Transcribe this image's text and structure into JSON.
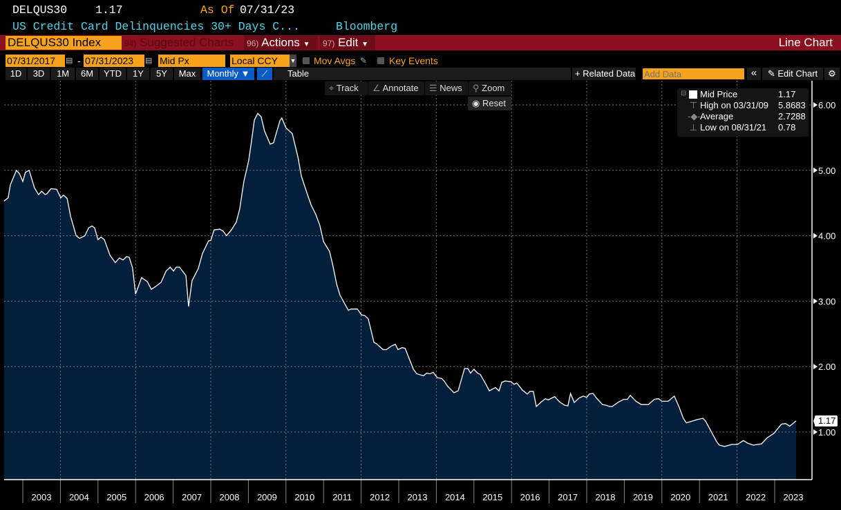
{
  "header": {
    "ticker": "DELQUS30",
    "last": "1.17",
    "as_of_label": "As Of",
    "as_of_date": "07/31/23",
    "description": "US Credit Card Delinquencies 30+ Days C...",
    "source": "Bloomberg"
  },
  "menu": {
    "security": "DELQUS30 Index",
    "suggested_num": "94)",
    "suggested": "Suggested Charts",
    "actions_num": "96)",
    "actions": "Actions",
    "edit_num": "97)",
    "edit": "Edit",
    "chart_type": "Line Chart"
  },
  "controls": {
    "start_date": "07/31/2017",
    "dash": "-",
    "end_date": "07/31/2023",
    "field": "Mid Px",
    "currency": "Local CCY",
    "mov_avgs": "Mov Avgs",
    "key_events": "Key Events"
  },
  "periods": [
    "1D",
    "3D",
    "1M",
    "6M",
    "YTD",
    "1Y",
    "5Y",
    "Max"
  ],
  "frequency": "Monthly ▼",
  "table": "Table",
  "related": "+ Related Data",
  "add_data_placeholder": "Add Data",
  "collapse": "«",
  "edit_chart": "Edit Chart",
  "tools": {
    "track": "Track",
    "annotate": "Annotate",
    "news": "News",
    "zoom": "Zoom",
    "reset": "Reset"
  },
  "legend": {
    "mid_label": "Mid Price",
    "mid_value": "1.17",
    "high_label": "High on 03/31/09",
    "high_value": "5.8683",
    "avg_label": "Average",
    "avg_value": "2.7288",
    "low_label": "Low on 08/31/21",
    "low_value": "0.78"
  },
  "colors": {
    "fill": "#031f3b",
    "line": "#ffffff",
    "accent": "#f7a21b",
    "bar": "#8a0f1f",
    "cyan": "#4fd3ea"
  },
  "chart_data": {
    "type": "area",
    "title": "US Credit Card Delinquencies 30+ Days",
    "xlabel": "",
    "ylabel": "",
    "ylim": [
      0.27,
      6.35
    ],
    "xlim": [
      2002.5,
      2023.6
    ],
    "yticks": [
      "6.00",
      "5.00",
      "4.00",
      "3.00",
      "2.00",
      "1.00"
    ],
    "xticks": [
      "2003",
      "2004",
      "2005",
      "2006",
      "2007",
      "2008",
      "2009",
      "2010",
      "2011",
      "2012",
      "2013",
      "2014",
      "2015",
      "2016",
      "2017",
      "2018",
      "2019",
      "2020",
      "2021",
      "2022",
      "2023"
    ],
    "last_value": "1.17",
    "grid": true,
    "points": [
      [
        2002.5,
        4.53
      ],
      [
        2002.61,
        4.58
      ],
      [
        2002.67,
        4.78
      ],
      [
        2002.83,
        5.0
      ],
      [
        2002.91,
        4.95
      ],
      [
        2003.0,
        4.83
      ],
      [
        2003.07,
        4.97
      ],
      [
        2003.17,
        5.0
      ],
      [
        2003.31,
        4.73
      ],
      [
        2003.42,
        4.63
      ],
      [
        2003.5,
        4.68
      ],
      [
        2003.59,
        4.63
      ],
      [
        2003.64,
        4.64
      ],
      [
        2003.75,
        4.72
      ],
      [
        2003.9,
        4.71
      ],
      [
        2004.01,
        4.58
      ],
      [
        2004.08,
        4.62
      ],
      [
        2004.18,
        4.57
      ],
      [
        2004.27,
        4.3
      ],
      [
        2004.42,
        4.0
      ],
      [
        2004.51,
        3.96
      ],
      [
        2004.65,
        4.0
      ],
      [
        2004.75,
        4.12
      ],
      [
        2004.84,
        4.15
      ],
      [
        2004.91,
        4.12
      ],
      [
        2005.0,
        3.94
      ],
      [
        2005.08,
        3.98
      ],
      [
        2005.17,
        3.94
      ],
      [
        2005.32,
        3.7
      ],
      [
        2005.46,
        3.59
      ],
      [
        2005.57,
        3.66
      ],
      [
        2005.67,
        3.63
      ],
      [
        2005.76,
        3.68
      ],
      [
        2005.83,
        3.67
      ],
      [
        2005.92,
        3.51
      ],
      [
        2006.0,
        3.11
      ],
      [
        2006.16,
        3.36
      ],
      [
        2006.31,
        3.3
      ],
      [
        2006.42,
        3.18
      ],
      [
        2006.57,
        3.24
      ],
      [
        2006.68,
        3.29
      ],
      [
        2006.81,
        3.46
      ],
      [
        2006.92,
        3.52
      ],
      [
        2007.01,
        3.46
      ],
      [
        2007.08,
        3.52
      ],
      [
        2007.17,
        3.52
      ],
      [
        2007.34,
        3.39
      ],
      [
        2007.41,
        2.92
      ],
      [
        2007.5,
        3.31
      ],
      [
        2007.67,
        3.5
      ],
      [
        2007.78,
        3.73
      ],
      [
        2007.94,
        3.92
      ],
      [
        2008.0,
        3.93
      ],
      [
        2008.09,
        4.09
      ],
      [
        2008.24,
        4.1
      ],
      [
        2008.33,
        4.07
      ],
      [
        2008.42,
        4.0
      ],
      [
        2008.55,
        4.09
      ],
      [
        2008.68,
        4.21
      ],
      [
        2008.77,
        4.41
      ],
      [
        2008.88,
        4.83
      ],
      [
        2009.01,
        5.15
      ],
      [
        2009.07,
        5.39
      ],
      [
        2009.16,
        5.77
      ],
      [
        2009.25,
        5.87
      ],
      [
        2009.34,
        5.82
      ],
      [
        2009.43,
        5.6
      ],
      [
        2009.58,
        5.4
      ],
      [
        2009.67,
        5.42
      ],
      [
        2009.84,
        5.76
      ],
      [
        2009.89,
        5.8
      ],
      [
        2010.0,
        5.65
      ],
      [
        2010.17,
        5.56
      ],
      [
        2010.32,
        5.2
      ],
      [
        2010.41,
        4.91
      ],
      [
        2010.59,
        4.6
      ],
      [
        2010.67,
        4.47
      ],
      [
        2010.79,
        4.33
      ],
      [
        2010.9,
        4.16
      ],
      [
        2011.0,
        3.91
      ],
      [
        2011.16,
        3.76
      ],
      [
        2011.25,
        3.54
      ],
      [
        2011.35,
        3.26
      ],
      [
        2011.44,
        3.09
      ],
      [
        2011.66,
        2.86
      ],
      [
        2011.73,
        2.88
      ],
      [
        2011.9,
        2.88
      ],
      [
        2012.01,
        2.79
      ],
      [
        2012.1,
        2.78
      ],
      [
        2012.19,
        2.73
      ],
      [
        2012.34,
        2.37
      ],
      [
        2012.41,
        2.35
      ],
      [
        2012.58,
        2.26
      ],
      [
        2012.67,
        2.26
      ],
      [
        2012.82,
        2.32
      ],
      [
        2012.91,
        2.34
      ],
      [
        2012.98,
        2.26
      ],
      [
        2013.09,
        2.29
      ],
      [
        2013.17,
        2.28
      ],
      [
        2013.28,
        2.12
      ],
      [
        2013.39,
        1.96
      ],
      [
        2013.48,
        1.89
      ],
      [
        2013.66,
        1.86
      ],
      [
        2013.74,
        1.9
      ],
      [
        2013.83,
        1.89
      ],
      [
        2013.92,
        1.91
      ],
      [
        2014.03,
        1.83
      ],
      [
        2014.14,
        1.82
      ],
      [
        2014.21,
        1.78
      ],
      [
        2014.3,
        1.7
      ],
      [
        2014.47,
        1.6
      ],
      [
        2014.58,
        1.63
      ],
      [
        2014.65,
        1.77
      ],
      [
        2014.75,
        1.97
      ],
      [
        2014.84,
        1.97
      ],
      [
        2014.91,
        1.9
      ],
      [
        2015.0,
        1.96
      ],
      [
        2015.1,
        1.9
      ],
      [
        2015.17,
        1.88
      ],
      [
        2015.32,
        1.73
      ],
      [
        2015.41,
        1.63
      ],
      [
        2015.57,
        1.68
      ],
      [
        2015.67,
        1.63
      ],
      [
        2015.74,
        1.76
      ],
      [
        2015.83,
        1.78
      ],
      [
        2015.98,
        1.77
      ],
      [
        2016.07,
        1.73
      ],
      [
        2016.14,
        1.75
      ],
      [
        2016.29,
        1.64
      ],
      [
        2016.42,
        1.58
      ],
      [
        2016.49,
        1.62
      ],
      [
        2016.58,
        1.62
      ],
      [
        2016.66,
        1.39
      ],
      [
        2016.79,
        1.46
      ],
      [
        2016.9,
        1.51
      ],
      [
        2016.97,
        1.49
      ],
      [
        2017.15,
        1.54
      ],
      [
        2017.28,
        1.46
      ],
      [
        2017.41,
        1.41
      ],
      [
        2017.5,
        1.4
      ],
      [
        2017.57,
        1.59
      ],
      [
        2017.67,
        1.45
      ],
      [
        2017.8,
        1.52
      ],
      [
        2017.91,
        1.55
      ],
      [
        2018.0,
        1.53
      ],
      [
        2018.07,
        1.58
      ],
      [
        2018.17,
        1.59
      ],
      [
        2018.26,
        1.52
      ],
      [
        2018.42,
        1.42
      ],
      [
        2018.51,
        1.41
      ],
      [
        2018.61,
        1.39
      ],
      [
        2018.68,
        1.39
      ],
      [
        2018.85,
        1.46
      ],
      [
        2018.99,
        1.5
      ],
      [
        2019.08,
        1.5
      ],
      [
        2019.16,
        1.56
      ],
      [
        2019.31,
        1.47
      ],
      [
        2019.45,
        1.42
      ],
      [
        2019.64,
        1.42
      ],
      [
        2019.8,
        1.5
      ],
      [
        2019.91,
        1.51
      ],
      [
        2020.0,
        1.47
      ],
      [
        2020.17,
        1.47
      ],
      [
        2020.33,
        1.55
      ],
      [
        2020.46,
        1.38
      ],
      [
        2020.57,
        1.21
      ],
      [
        2020.65,
        1.14
      ],
      [
        2020.94,
        1.19
      ],
      [
        2021.09,
        1.21
      ],
      [
        2021.16,
        1.17
      ],
      [
        2021.46,
        0.85
      ],
      [
        2021.53,
        0.8
      ],
      [
        2021.67,
        0.78
      ],
      [
        2021.86,
        0.81
      ],
      [
        2022.01,
        0.81
      ],
      [
        2022.17,
        0.87
      ],
      [
        2022.28,
        0.83
      ],
      [
        2022.43,
        0.8
      ],
      [
        2022.65,
        0.82
      ],
      [
        2022.8,
        0.91
      ],
      [
        2022.98,
        0.98
      ],
      [
        2023.18,
        1.12
      ],
      [
        2023.29,
        1.13
      ],
      [
        2023.4,
        1.09
      ],
      [
        2023.57,
        1.17
      ]
    ]
  }
}
